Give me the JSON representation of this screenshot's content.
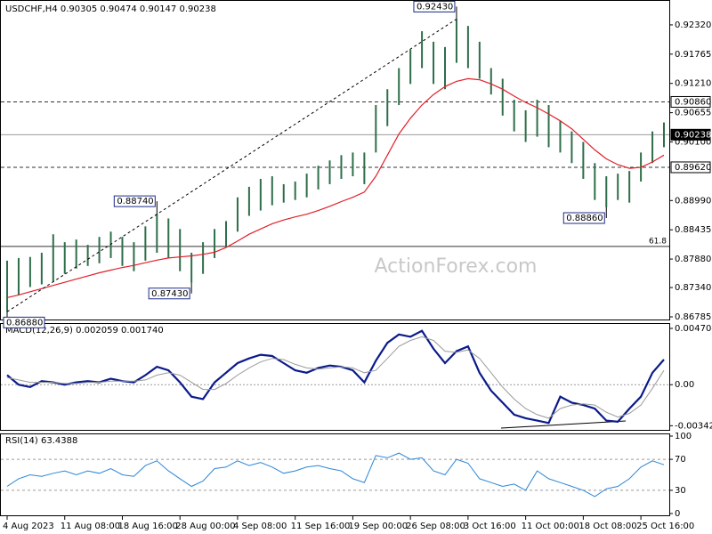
{
  "chart_data": [
    {
      "type": "ohlc",
      "title": "USDCHF,H4 0.90305 0.90474 0.90147 0.90238",
      "watermark": "ActionForex.com",
      "categories": [
        "4 Aug 2023",
        null,
        null,
        null,
        null,
        "11 Aug 08:00",
        null,
        null,
        null,
        null,
        "18 Aug 16:00",
        null,
        null,
        null,
        null,
        "28 Aug 00:00",
        null,
        null,
        null,
        null,
        "4 Sep 08:00",
        null,
        null,
        null,
        null,
        "11 Sep 16:00",
        null,
        null,
        null,
        null,
        "19 Sep 00:00",
        null,
        null,
        null,
        null,
        "26 Sep 08:00",
        null,
        null,
        null,
        null,
        "3 Oct 16:00",
        null,
        null,
        null,
        null,
        "11 Oct 00:00",
        null,
        null,
        null,
        null,
        "18 Oct 08:00",
        null,
        null,
        null,
        null,
        "25 Oct 16:00",
        null,
        null
      ],
      "high": [
        0.8785,
        0.879,
        0.8792,
        0.88,
        0.8835,
        0.882,
        0.8825,
        0.8815,
        0.883,
        0.884,
        0.883,
        0.882,
        0.885,
        0.8874,
        0.8865,
        0.8845,
        0.88,
        0.882,
        0.8845,
        0.886,
        0.8905,
        0.8925,
        0.894,
        0.8945,
        0.893,
        0.8935,
        0.895,
        0.8965,
        0.8975,
        0.8985,
        0.899,
        0.899,
        0.908,
        0.911,
        0.915,
        0.9185,
        0.922,
        0.92,
        0.919,
        0.9243,
        0.923,
        0.92,
        0.915,
        0.913,
        0.909,
        0.907,
        0.909,
        0.908,
        0.905,
        0.903,
        0.901,
        0.897,
        0.8945,
        0.895,
        0.8955,
        0.899,
        0.903,
        0.9047
      ],
      "low": [
        0.8688,
        0.872,
        0.8735,
        0.874,
        0.8745,
        0.876,
        0.877,
        0.8775,
        0.878,
        0.879,
        0.8775,
        0.8765,
        0.8785,
        0.88,
        0.879,
        0.8765,
        0.8743,
        0.876,
        0.879,
        0.881,
        0.884,
        0.887,
        0.888,
        0.889,
        0.8895,
        0.89,
        0.8905,
        0.892,
        0.893,
        0.894,
        0.8945,
        0.893,
        0.899,
        0.904,
        0.908,
        0.912,
        0.915,
        0.912,
        0.911,
        0.916,
        0.915,
        0.913,
        0.91,
        0.906,
        0.903,
        0.901,
        0.902,
        0.9,
        0.899,
        0.897,
        0.894,
        0.89,
        0.8886,
        0.89,
        0.8895,
        0.8935,
        0.897,
        0.9
      ],
      "bar_color": "#2e6e4a",
      "series": [
        {
          "name": "MA",
          "color": "#e0202a",
          "values": [
            0.8715,
            0.872,
            0.8726,
            0.8732,
            0.8738,
            0.8744,
            0.875,
            0.8756,
            0.8762,
            0.8767,
            0.8772,
            0.8776,
            0.8781,
            0.8786,
            0.879,
            0.8792,
            0.8794,
            0.8797,
            0.8801,
            0.881,
            0.8822,
            0.8835,
            0.8845,
            0.8855,
            0.8862,
            0.8868,
            0.8873,
            0.888,
            0.8888,
            0.8897,
            0.8905,
            0.8915,
            0.8945,
            0.8985,
            0.9025,
            0.9055,
            0.908,
            0.91,
            0.9115,
            0.9125,
            0.913,
            0.9128,
            0.912,
            0.911,
            0.9097,
            0.9085,
            0.9075,
            0.9063,
            0.905,
            0.9035,
            0.9015,
            0.8995,
            0.8978,
            0.8967,
            0.896,
            0.8962,
            0.8972,
            0.8985
          ]
        }
      ],
      "ylim": [
        0.86768,
        0.92707
      ],
      "yticks": [
        {
          "value": 0.9232,
          "label": "0.92320"
        },
        {
          "value": 0.91765,
          "label": "0.91765"
        },
        {
          "value": 0.9121,
          "label": "0.91210"
        },
        {
          "value": 0.90655,
          "label": "0.90655"
        },
        {
          "value": 0.901,
          "label": "0.90100"
        },
        {
          "value": 0.8899,
          "label": "0.88990"
        },
        {
          "value": 0.88435,
          "label": "0.88435"
        },
        {
          "value": 0.8788,
          "label": "0.87880"
        },
        {
          "value": 0.8734,
          "label": "0.87340"
        },
        {
          "value": 0.86785,
          "label": "0.86785"
        }
      ],
      "hlines": [
        {
          "value": 0.9086,
          "label": "0.90860",
          "style": "dashed"
        },
        {
          "value": 0.90238,
          "label": "0.90238",
          "style": "current"
        },
        {
          "value": 0.8962,
          "label": "0.89620",
          "style": "dashed"
        },
        {
          "value": 0.8812,
          "label": "61.8",
          "style": "level"
        }
      ],
      "annotations": [
        {
          "bar": 0,
          "value": 0.8688,
          "label": "0.86880"
        },
        {
          "bar": 16,
          "value": 0.8743,
          "label": "0.87430"
        },
        {
          "bar": 13,
          "value": 0.8874,
          "label": "0.88740"
        },
        {
          "bar": 39,
          "value": 0.9243,
          "label": "0.92430"
        },
        {
          "bar": 52,
          "value": 0.8886,
          "label": "0.88860"
        }
      ],
      "trendline": [
        0,
        3
      ]
    },
    {
      "type": "line",
      "title": "MACD(12,26,9) 0.002059 0.001740",
      "series": [
        {
          "name": "MACD",
          "color": "#0a1a8a",
          "width": 2.2,
          "values": [
            0.0008,
            0.0,
            -0.0002,
            0.0003,
            0.0002,
            0.0,
            0.0002,
            0.0003,
            0.0002,
            0.0005,
            0.0003,
            0.0002,
            0.0008,
            0.0015,
            0.0012,
            0.0002,
            -0.001,
            -0.0012,
            0.0002,
            0.001,
            0.0018,
            0.0022,
            0.0025,
            0.0024,
            0.0018,
            0.0012,
            0.001,
            0.0014,
            0.0016,
            0.0015,
            0.0012,
            0.0002,
            0.002,
            0.0035,
            0.0042,
            0.004,
            0.0045,
            0.003,
            0.0018,
            0.0028,
            0.0032,
            0.001,
            -0.0005,
            -0.0015,
            -0.0025,
            -0.0028,
            -0.003,
            -0.0032,
            -0.001,
            -0.0015,
            -0.0017,
            -0.002,
            -0.003,
            -0.0031,
            -0.002,
            -0.001,
            0.001,
            0.0021
          ]
        },
        {
          "name": "Signal",
          "color": "#9a9a9a",
          "width": 1,
          "values": [
            0.0006,
            0.0004,
            0.0002,
            0.0002,
            0.0002,
            0.0001,
            0.0001,
            0.0002,
            0.0002,
            0.0003,
            0.0003,
            0.0003,
            0.0004,
            0.0008,
            0.001,
            0.0008,
            0.0002,
            -0.0004,
            -0.0004,
            0.0001,
            0.0008,
            0.0014,
            0.0019,
            0.0022,
            0.0021,
            0.0017,
            0.0014,
            0.0013,
            0.0014,
            0.0015,
            0.0014,
            0.001,
            0.0012,
            0.0022,
            0.0032,
            0.0037,
            0.004,
            0.0037,
            0.0028,
            0.0027,
            0.0029,
            0.0022,
            0.001,
            -0.0002,
            -0.0012,
            -0.002,
            -0.0025,
            -0.0028,
            -0.002,
            -0.0017,
            -0.0016,
            -0.0017,
            -0.0023,
            -0.0027,
            -0.0024,
            -0.0017,
            -0.0003,
            0.0012
          ]
        }
      ],
      "ylim": [
        -0.0037,
        0.005
      ],
      "yticks": [
        0.004704,
        {
          "value": 0,
          "label": "0.00"
        },
        -0.003429
      ],
      "zero_line": true
    },
    {
      "type": "line",
      "title": "RSI(14) 63.4388",
      "series": [
        {
          "name": "RSI",
          "color": "#2a86d8",
          "width": 1,
          "values": [
            35,
            45,
            50,
            48,
            52,
            55,
            50,
            55,
            52,
            58,
            50,
            48,
            62,
            68,
            55,
            45,
            35,
            42,
            58,
            60,
            68,
            62,
            66,
            60,
            52,
            55,
            60,
            62,
            58,
            55,
            45,
            40,
            75,
            72,
            78,
            70,
            72,
            55,
            50,
            70,
            65,
            45,
            40,
            35,
            38,
            30,
            55,
            45,
            40,
            35,
            30,
            22,
            32,
            35,
            45,
            60,
            68,
            63
          ]
        }
      ],
      "ylim": [
        0,
        100
      ],
      "yticks": [
        100,
        70,
        30,
        0
      ],
      "grid": true
    }
  ]
}
